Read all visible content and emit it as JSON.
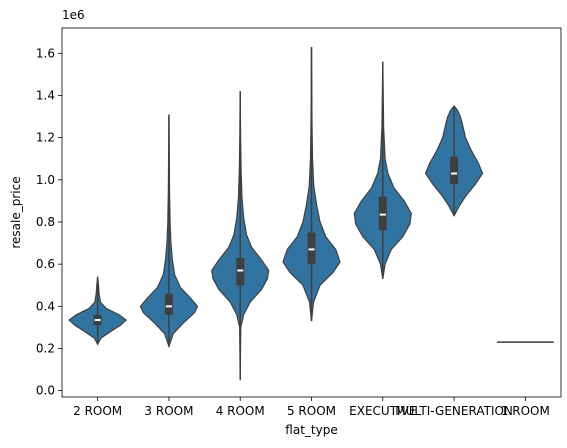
{
  "chart_data": {
    "type": "violin",
    "xlabel": "flat_type",
    "ylabel": "resale_price",
    "y_multiplier_label": "1e6",
    "ylim": [
      -0.03,
      1.72
    ],
    "yticks": [
      0.0,
      0.2,
      0.4,
      0.6,
      0.8,
      1.0,
      1.2,
      1.4,
      1.6
    ],
    "ytick_labels": [
      "0.0",
      "0.2",
      "0.4",
      "0.6",
      "0.8",
      "1.0",
      "1.2",
      "1.4",
      "1.6"
    ],
    "grid": false,
    "color": "#3274a1",
    "categories": [
      "2 ROOM",
      "3 ROOM",
      "4 ROOM",
      "5 ROOM",
      "EXECUTIVE",
      "MULTI-GENERATION",
      "1 ROOM"
    ],
    "violins": [
      {
        "category": "2 ROOM",
        "min": 0.22,
        "max": 0.54,
        "q1": 0.31,
        "median": 0.335,
        "q3": 0.36,
        "whisker_low": 0.24,
        "whisker_high": 0.54,
        "density": [
          [
            0.22,
            0.0
          ],
          [
            0.25,
            0.12
          ],
          [
            0.28,
            0.45
          ],
          [
            0.31,
            0.8
          ],
          [
            0.335,
            1.0
          ],
          [
            0.36,
            0.75
          ],
          [
            0.39,
            0.3
          ],
          [
            0.42,
            0.1
          ],
          [
            0.46,
            0.05
          ],
          [
            0.5,
            0.03
          ],
          [
            0.54,
            0.0
          ]
        ]
      },
      {
        "category": "3 ROOM",
        "min": 0.21,
        "max": 1.31,
        "q1": 0.36,
        "median": 0.4,
        "q3": 0.46,
        "whisker_low": 0.21,
        "whisker_high": 1.31,
        "density": [
          [
            0.21,
            0.0
          ],
          [
            0.27,
            0.15
          ],
          [
            0.32,
            0.5
          ],
          [
            0.37,
            0.9
          ],
          [
            0.4,
            1.0
          ],
          [
            0.44,
            0.75
          ],
          [
            0.49,
            0.4
          ],
          [
            0.55,
            0.2
          ],
          [
            0.62,
            0.12
          ],
          [
            0.7,
            0.07
          ],
          [
            0.8,
            0.04
          ],
          [
            0.95,
            0.02
          ],
          [
            1.1,
            0.012
          ],
          [
            1.31,
            0.0
          ]
        ]
      },
      {
        "category": "4 ROOM",
        "min": 0.05,
        "max": 1.42,
        "q1": 0.5,
        "median": 0.57,
        "q3": 0.63,
        "whisker_low": 0.35,
        "whisker_high": 1.42,
        "density": [
          [
            0.05,
            0.0
          ],
          [
            0.3,
            0.02
          ],
          [
            0.36,
            0.12
          ],
          [
            0.42,
            0.35
          ],
          [
            0.48,
            0.75
          ],
          [
            0.53,
            0.95
          ],
          [
            0.57,
            1.0
          ],
          [
            0.62,
            0.75
          ],
          [
            0.68,
            0.4
          ],
          [
            0.74,
            0.22
          ],
          [
            0.82,
            0.12
          ],
          [
            0.92,
            0.06
          ],
          [
            1.05,
            0.03
          ],
          [
            1.2,
            0.015
          ],
          [
            1.42,
            0.0
          ]
        ]
      },
      {
        "category": "5 ROOM",
        "min": 0.33,
        "max": 1.63,
        "q1": 0.6,
        "median": 0.67,
        "q3": 0.75,
        "whisker_low": 0.38,
        "whisker_high": 1.63,
        "density": [
          [
            0.33,
            0.0
          ],
          [
            0.42,
            0.07
          ],
          [
            0.5,
            0.3
          ],
          [
            0.56,
            0.75
          ],
          [
            0.61,
            1.0
          ],
          [
            0.67,
            0.85
          ],
          [
            0.73,
            0.5
          ],
          [
            0.8,
            0.3
          ],
          [
            0.88,
            0.18
          ],
          [
            0.97,
            0.08
          ],
          [
            1.1,
            0.035
          ],
          [
            1.3,
            0.015
          ],
          [
            1.63,
            0.0
          ]
        ]
      },
      {
        "category": "EXECUTIVE",
        "min": 0.53,
        "max": 1.56,
        "q1": 0.76,
        "median": 0.835,
        "q3": 0.92,
        "whisker_low": 0.58,
        "whisker_high": 1.56,
        "density": [
          [
            0.53,
            0.0
          ],
          [
            0.6,
            0.08
          ],
          [
            0.67,
            0.3
          ],
          [
            0.73,
            0.7
          ],
          [
            0.79,
            0.95
          ],
          [
            0.84,
            1.0
          ],
          [
            0.9,
            0.75
          ],
          [
            0.96,
            0.4
          ],
          [
            1.03,
            0.18
          ],
          [
            1.1,
            0.08
          ],
          [
            1.25,
            0.03
          ],
          [
            1.56,
            0.0
          ]
        ]
      },
      {
        "category": "MULTI-GENERATION",
        "min": 0.83,
        "max": 1.35,
        "q1": 0.98,
        "median": 1.03,
        "q3": 1.11,
        "whisker_low": 0.83,
        "whisker_high": 1.2,
        "density": [
          [
            0.83,
            0.0
          ],
          [
            0.88,
            0.2
          ],
          [
            0.93,
            0.45
          ],
          [
            0.98,
            0.75
          ],
          [
            1.03,
            1.0
          ],
          [
            1.08,
            0.85
          ],
          [
            1.14,
            0.6
          ],
          [
            1.2,
            0.4
          ],
          [
            1.26,
            0.3
          ],
          [
            1.3,
            0.22
          ],
          [
            1.33,
            0.12
          ],
          [
            1.35,
            0.0
          ]
        ]
      },
      {
        "category": "1 ROOM",
        "min": 0.23,
        "max": 0.23,
        "q1": 0.23,
        "median": 0.23,
        "q3": 0.23,
        "whisker_low": 0.23,
        "whisker_high": 0.23,
        "density": []
      }
    ]
  }
}
